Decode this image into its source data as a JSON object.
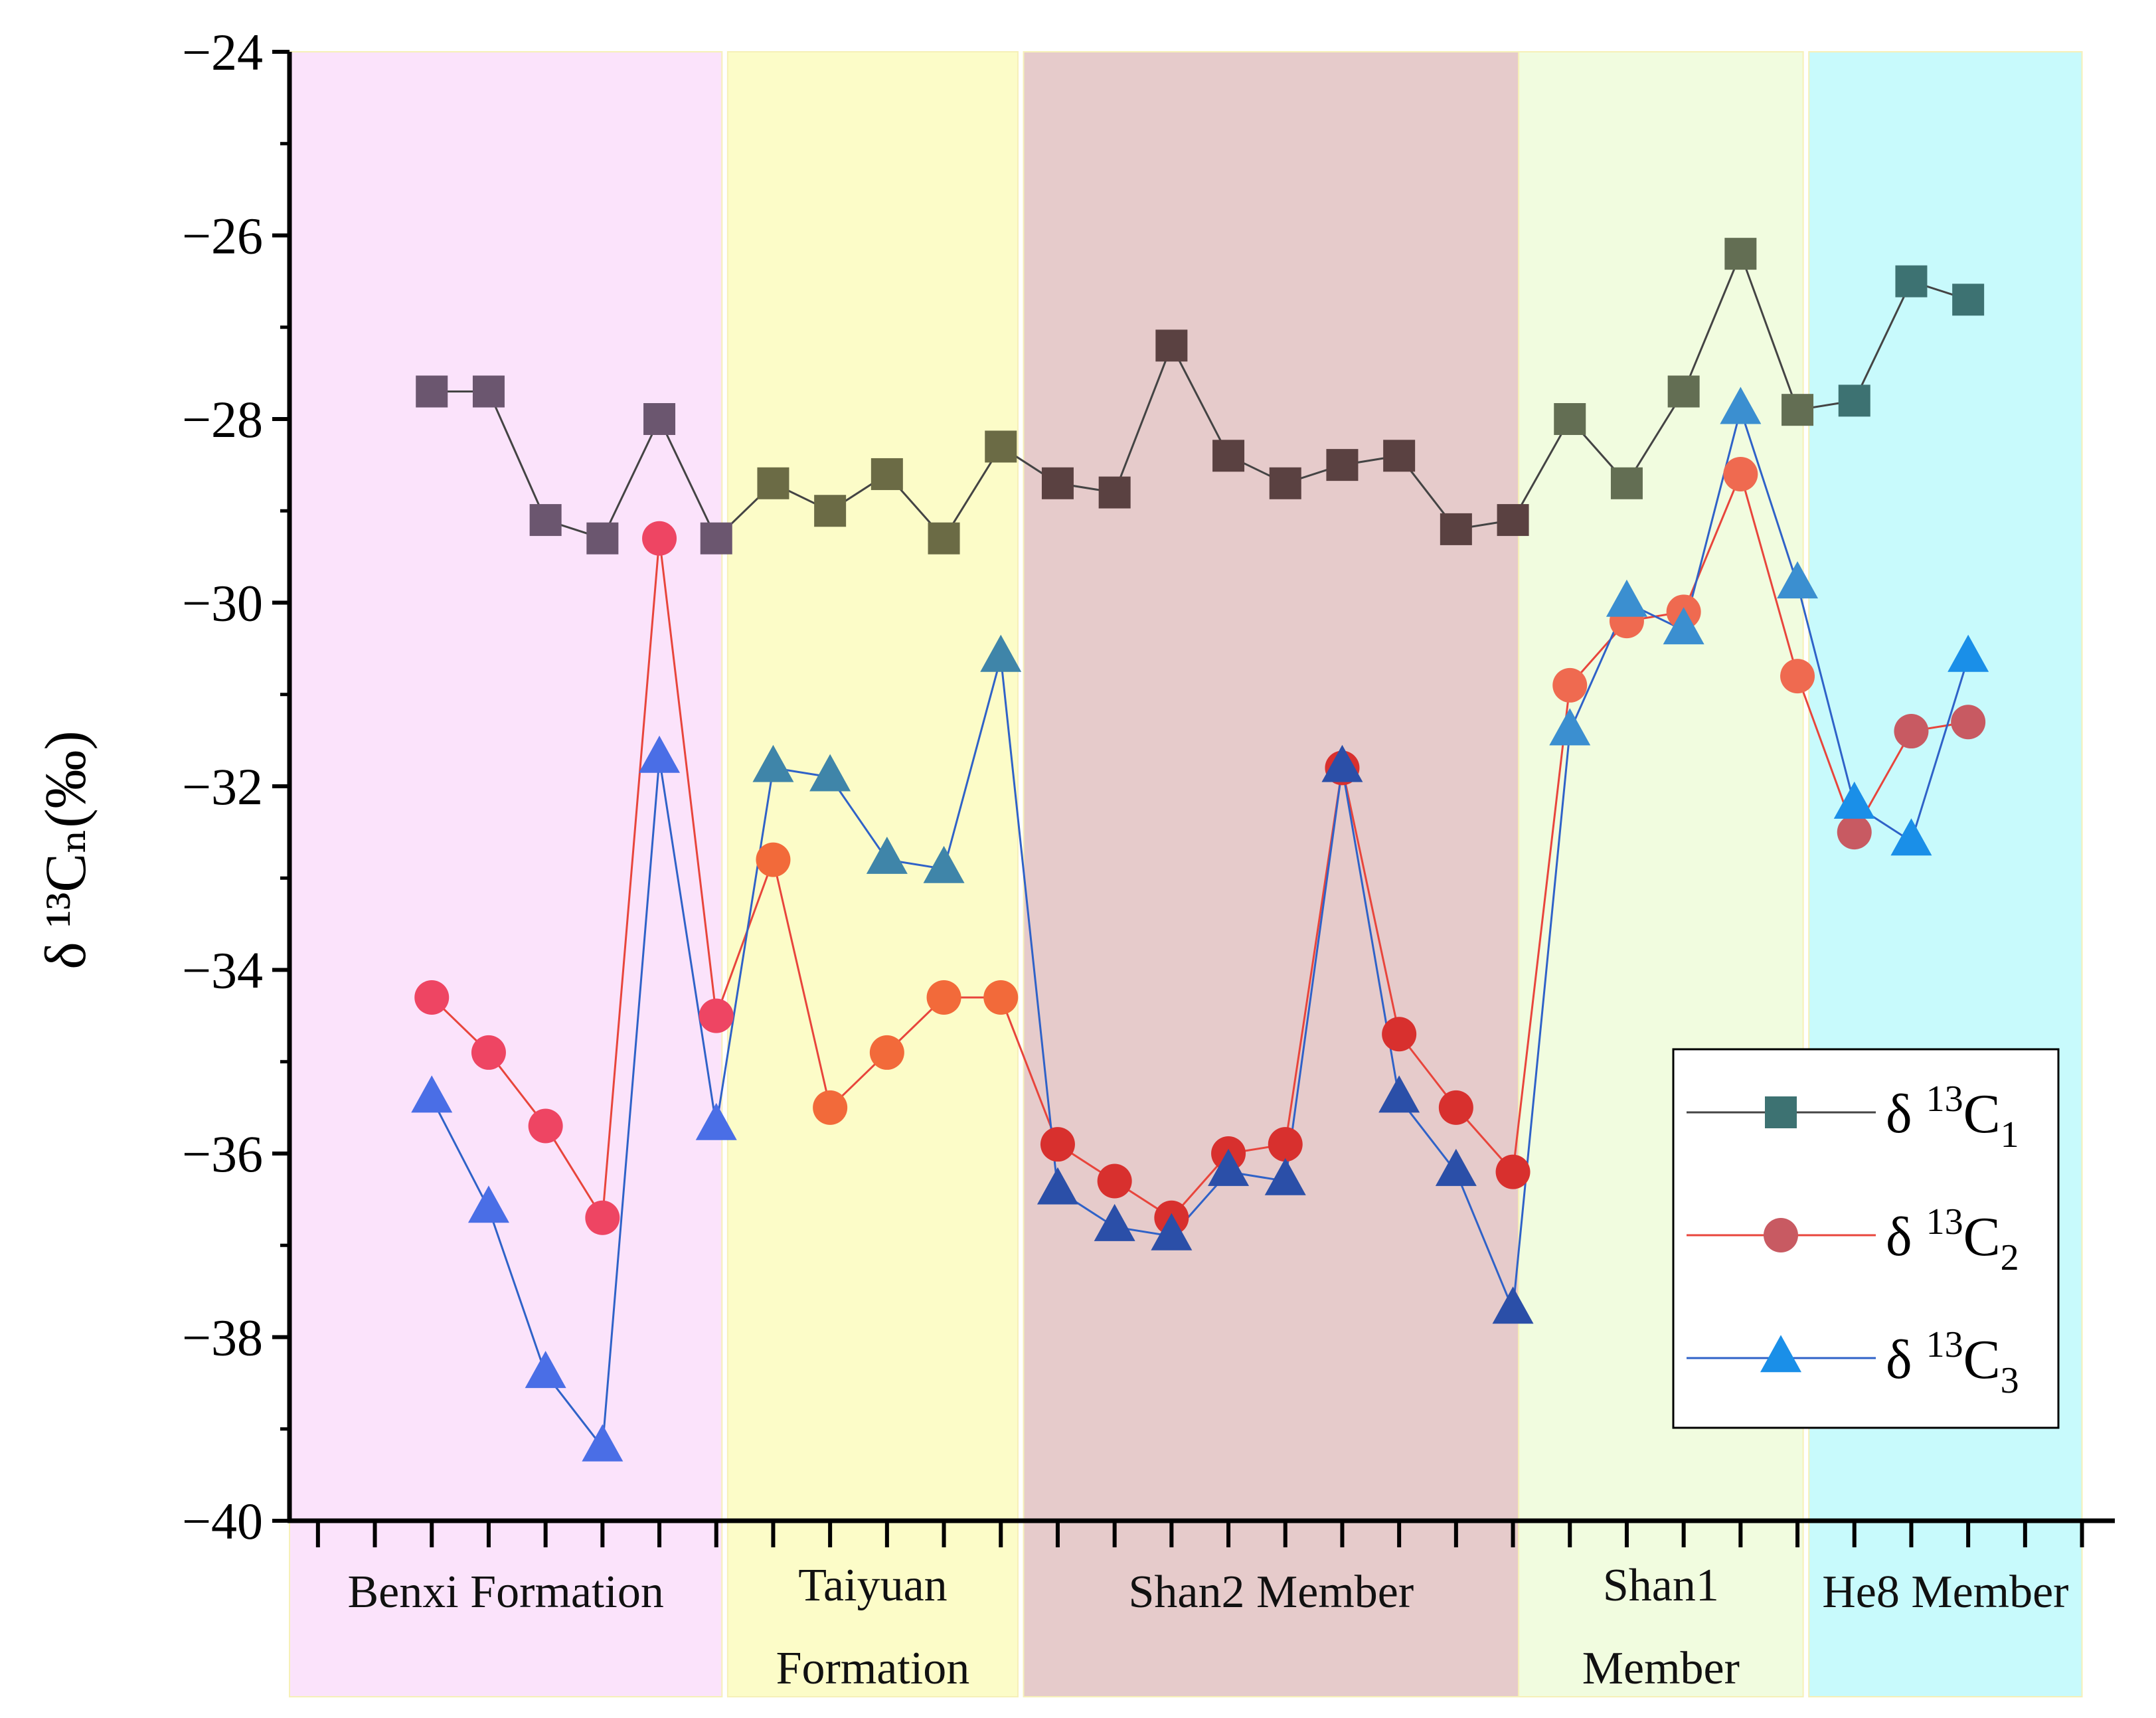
{
  "chart_data": {
    "type": "line",
    "ylabel": "δ ¹³Cₙ(‰)",
    "ylim": [
      -40,
      -24
    ],
    "y_ticks": [
      -40,
      -38,
      -36,
      -34,
      -32,
      -30,
      -28,
      -26,
      -24
    ],
    "y_tick_labels": [
      "−40",
      "−38",
      "−36",
      "−34",
      "−32",
      "−30",
      "−28",
      "−26",
      "−24"
    ],
    "x_count": 32,
    "zones": [
      {
        "name": "Benxi Formation",
        "lines": [
          "Benxi Formation"
        ],
        "from": 0,
        "to": 7.6,
        "color": "#fbe3fb"
      },
      {
        "name": "Taiyuan Formation",
        "lines": [
          "Taiyuan",
          "Formation"
        ],
        "from": 7.7,
        "to": 12.8,
        "color": "#fcfcc8"
      },
      {
        "name": "Shan2 Member",
        "lines": [
          "Shan2 Member"
        ],
        "from": 12.9,
        "to": 21.6,
        "color": "#e6cbcb"
      },
      {
        "name": "Shan1 Member",
        "lines": [
          "Shan1",
          "Member"
        ],
        "from": 21.6,
        "to": 26.6,
        "color": "#f1fcdf"
      },
      {
        "name": "He8 Member",
        "lines": [
          "He8 Member"
        ],
        "from": 26.7,
        "to": 31.5,
        "color": "#c8fafc"
      }
    ],
    "series": [
      {
        "name": "δ ¹³C₁",
        "legend": {
          "base": "δ ",
          "sup": "13",
          "main": "C",
          "sub": "1"
        },
        "marker": "square",
        "line_color": "#444444",
        "points": [
          {
            "x": 2,
            "y": -27.7,
            "color": "#6b566f"
          },
          {
            "x": 3,
            "y": -27.7,
            "color": "#6b566f"
          },
          {
            "x": 4,
            "y": -29.1,
            "color": "#6b566f"
          },
          {
            "x": 5,
            "y": -29.3,
            "color": "#6b566f"
          },
          {
            "x": 6,
            "y": -28.0,
            "color": "#6b566f"
          },
          {
            "x": 7,
            "y": -29.3,
            "color": "#6b566f"
          },
          {
            "x": 8,
            "y": -28.7,
            "color": "#6b6b45"
          },
          {
            "x": 9,
            "y": -29.0,
            "color": "#6b6b45"
          },
          {
            "x": 10,
            "y": -28.6,
            "color": "#6b6b45"
          },
          {
            "x": 11,
            "y": -29.3,
            "color": "#6b6b45"
          },
          {
            "x": 12,
            "y": -28.3,
            "color": "#6b6b45"
          },
          {
            "x": 13,
            "y": -28.7,
            "color": "#5a4141"
          },
          {
            "x": 14,
            "y": -28.8,
            "color": "#5a4141"
          },
          {
            "x": 15,
            "y": -27.2,
            "color": "#5a4141"
          },
          {
            "x": 16,
            "y": -28.4,
            "color": "#5a4141"
          },
          {
            "x": 17,
            "y": -28.7,
            "color": "#5a4141"
          },
          {
            "x": 18,
            "y": -28.5,
            "color": "#5a4141"
          },
          {
            "x": 19,
            "y": -28.4,
            "color": "#5a4141"
          },
          {
            "x": 20,
            "y": -29.2,
            "color": "#5a4141"
          },
          {
            "x": 21,
            "y": -29.1,
            "color": "#5a4141"
          },
          {
            "x": 22,
            "y": -28.0,
            "color": "#636e53"
          },
          {
            "x": 23,
            "y": -28.7,
            "color": "#636e53"
          },
          {
            "x": 24,
            "y": -27.7,
            "color": "#636e53"
          },
          {
            "x": 25,
            "y": -26.2,
            "color": "#636e53"
          },
          {
            "x": 26,
            "y": -27.9,
            "color": "#636e53"
          },
          {
            "x": 27,
            "y": -27.8,
            "color": "#3d7272"
          },
          {
            "x": 28,
            "y": -26.5,
            "color": "#3d7272"
          },
          {
            "x": 29,
            "y": -26.7,
            "color": "#3d7272"
          }
        ]
      },
      {
        "name": "δ ¹³C₂",
        "legend": {
          "base": "δ ",
          "sup": "13",
          "main": "C",
          "sub": "2"
        },
        "marker": "circle",
        "line_color": "#e8453c",
        "points": [
          {
            "x": 2,
            "y": -34.3,
            "color": "#ee4563"
          },
          {
            "x": 3,
            "y": -34.9,
            "color": "#ee4563"
          },
          {
            "x": 4,
            "y": -35.7,
            "color": "#ee4563"
          },
          {
            "x": 5,
            "y": -36.7,
            "color": "#ee4563"
          },
          {
            "x": 6,
            "y": -29.3,
            "color": "#ee4563"
          },
          {
            "x": 7,
            "y": -34.5,
            "color": "#ee4563"
          },
          {
            "x": 8,
            "y": -32.8,
            "color": "#f26a3a"
          },
          {
            "x": 9,
            "y": -35.5,
            "color": "#f26a3a"
          },
          {
            "x": 10,
            "y": -34.9,
            "color": "#f26a3a"
          },
          {
            "x": 11,
            "y": -34.3,
            "color": "#f26a3a"
          },
          {
            "x": 12,
            "y": -34.3,
            "color": "#f26a3a"
          },
          {
            "x": 13,
            "y": -35.9,
            "color": "#d8302e"
          },
          {
            "x": 14,
            "y": -36.3,
            "color": "#d8302e"
          },
          {
            "x": 15,
            "y": -36.7,
            "color": "#d8302e"
          },
          {
            "x": 16,
            "y": -36.0,
            "color": "#d8302e"
          },
          {
            "x": 17,
            "y": -35.9,
            "color": "#d8302e"
          },
          {
            "x": 18,
            "y": -31.8,
            "color": "#d8302e"
          },
          {
            "x": 19,
            "y": -34.7,
            "color": "#d8302e"
          },
          {
            "x": 20,
            "y": -35.5,
            "color": "#d8302e"
          },
          {
            "x": 21,
            "y": -36.2,
            "color": "#d8302e"
          },
          {
            "x": 22,
            "y": -30.9,
            "color": "#ef6a50"
          },
          {
            "x": 23,
            "y": -30.2,
            "color": "#ef6a50"
          },
          {
            "x": 24,
            "y": -30.1,
            "color": "#ef6a50"
          },
          {
            "x": 25,
            "y": -28.6,
            "color": "#ef6a50"
          },
          {
            "x": 26,
            "y": -30.8,
            "color": "#ef6a50"
          },
          {
            "x": 27,
            "y": -32.5,
            "color": "#c85a62"
          },
          {
            "x": 28,
            "y": -31.4,
            "color": "#c85a62"
          },
          {
            "x": 29,
            "y": -31.3,
            "color": "#c85a62"
          }
        ]
      },
      {
        "name": "δ ¹³C₃",
        "legend": {
          "base": "δ ",
          "sup": "13",
          "main": "C",
          "sub": "3"
        },
        "marker": "triangle",
        "line_color": "#2f62c8",
        "points": [
          {
            "x": 2,
            "y": -35.4,
            "color": "#4a6ee6"
          },
          {
            "x": 3,
            "y": -36.6,
            "color": "#4a6ee6"
          },
          {
            "x": 4,
            "y": -38.4,
            "color": "#4a6ee6"
          },
          {
            "x": 5,
            "y": -39.2,
            "color": "#4a6ee6"
          },
          {
            "x": 6,
            "y": -31.7,
            "color": "#4a6ee6"
          },
          {
            "x": 7,
            "y": -35.7,
            "color": "#4a6ee6"
          },
          {
            "x": 8,
            "y": -31.8,
            "color": "#3f85a9"
          },
          {
            "x": 9,
            "y": -31.9,
            "color": "#3f85a9"
          },
          {
            "x": 10,
            "y": -32.8,
            "color": "#3f85a9"
          },
          {
            "x": 11,
            "y": -32.9,
            "color": "#3f85a9"
          },
          {
            "x": 12,
            "y": -30.6,
            "color": "#3f85a9"
          },
          {
            "x": 13,
            "y": -36.4,
            "color": "#2b4fa8"
          },
          {
            "x": 14,
            "y": -36.8,
            "color": "#2b4fa8"
          },
          {
            "x": 15,
            "y": -36.9,
            "color": "#2b4fa8"
          },
          {
            "x": 16,
            "y": -36.2,
            "color": "#2b4fa8"
          },
          {
            "x": 17,
            "y": -36.3,
            "color": "#2b4fa8"
          },
          {
            "x": 18,
            "y": -31.8,
            "color": "#2b4fa8"
          },
          {
            "x": 19,
            "y": -35.4,
            "color": "#2b4fa8"
          },
          {
            "x": 20,
            "y": -36.2,
            "color": "#2b4fa8"
          },
          {
            "x": 21,
            "y": -37.7,
            "color": "#2b4fa8"
          },
          {
            "x": 22,
            "y": -31.4,
            "color": "#3b8fd0"
          },
          {
            "x": 23,
            "y": -30.0,
            "color": "#3b8fd0"
          },
          {
            "x": 24,
            "y": -30.3,
            "color": "#3b8fd0"
          },
          {
            "x": 25,
            "y": -27.9,
            "color": "#3b8fd0"
          },
          {
            "x": 26,
            "y": -29.8,
            "color": "#3b8fd0"
          },
          {
            "x": 27,
            "y": -32.2,
            "color": "#1a8fe8"
          },
          {
            "x": 28,
            "y": -32.6,
            "color": "#1a8fe8"
          },
          {
            "x": 29,
            "y": -30.6,
            "color": "#1a8fe8"
          }
        ]
      }
    ],
    "legend_position": "lower-right",
    "grid": false
  }
}
